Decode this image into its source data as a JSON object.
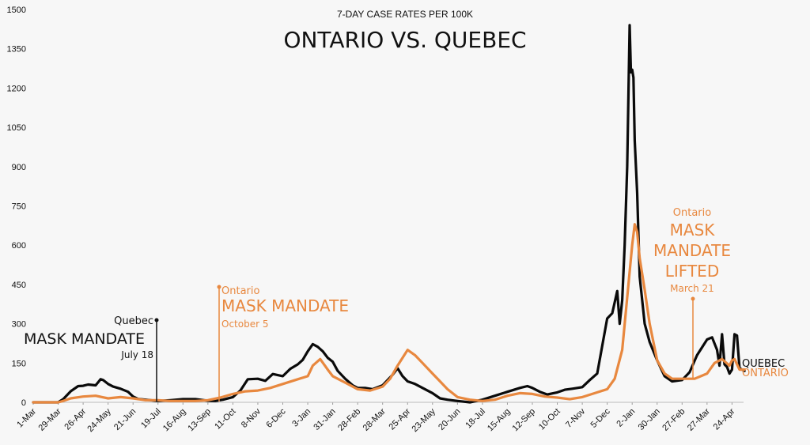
{
  "colors": {
    "quebec": "#0a0a0a",
    "ontario": "#e8883f",
    "background": "#f7f7f7"
  },
  "chart_data": {
    "type": "line",
    "title": "ONTARIO VS. QUEBEC",
    "subtitle": "7-DAY CASE RATES PER 100K",
    "xlabel": "",
    "ylabel": "",
    "ylim": [
      0,
      1500
    ],
    "yticks": [
      0,
      150,
      300,
      450,
      600,
      750,
      900,
      1050,
      1200,
      1350,
      1500
    ],
    "grid": false,
    "xticks": [
      "1-Mar",
      "29-Mar",
      "26-Apr",
      "24-May",
      "21-Jun",
      "19-Jul",
      "16-Aug",
      "13-Sep",
      "11-Oct",
      "8-Nov",
      "6-Dec",
      "3-Jan",
      "31-Jan",
      "28-Feb",
      "28-Mar",
      "25-Apr",
      "23-May",
      "20-Jun",
      "18-Jul",
      "15-Aug",
      "12-Sep",
      "10-Oct",
      "7-Nov",
      "5-Dec",
      "2-Jan",
      "30-Jan",
      "27-Feb",
      "27-Mar",
      "24-Apr"
    ],
    "series": [
      {
        "name": "QUEBEC",
        "color": "#0a0a0a",
        "x": [
          0,
          0.5,
          1,
          1.2,
          1.5,
          1.8,
          2,
          2.2,
          2.5,
          2.7,
          2.8,
          3,
          3.2,
          3.5,
          3.8,
          4,
          4.2,
          4.5,
          5,
          5.5,
          6,
          6.5,
          7,
          7.3,
          7.6,
          8,
          8.3,
          8.6,
          9,
          9.3,
          9.6,
          10,
          10.3,
          10.6,
          10.8,
          11,
          11.2,
          11.4,
          11.6,
          11.8,
          12,
          12.2,
          12.5,
          12.8,
          13,
          13.3,
          13.6,
          14,
          14.2,
          14.4,
          14.6,
          14.8,
          15,
          15.3,
          15.6,
          16,
          16.3,
          16.6,
          17,
          17.5,
          18,
          18.5,
          19,
          19.5,
          19.8,
          20,
          20.3,
          20.6,
          21,
          21.3,
          21.6,
          22,
          22.3,
          22.6,
          23,
          23.2,
          23.4,
          23.5,
          23.6,
          23.7,
          23.8,
          23.9,
          23.95,
          24,
          24.05,
          24.1,
          24.2,
          24.3,
          24.5,
          24.7,
          25,
          25.3,
          25.6,
          26,
          26.3,
          26.6,
          27,
          27.2,
          27.4,
          27.5,
          27.6,
          27.7,
          27.8,
          27.9,
          28,
          28.1,
          28.2,
          28.3,
          28.5
        ],
        "y": [
          0,
          0,
          0,
          12,
          42,
          62,
          63,
          68,
          65,
          88,
          85,
          70,
          60,
          52,
          40,
          22,
          13,
          10,
          5,
          8,
          12,
          12,
          6,
          5,
          10,
          20,
          45,
          88,
          90,
          82,
          108,
          100,
          128,
          145,
          162,
          195,
          222,
          212,
          195,
          170,
          155,
          120,
          90,
          65,
          55,
          55,
          50,
          65,
          85,
          105,
          130,
          100,
          80,
          70,
          55,
          35,
          15,
          10,
          5,
          0,
          10,
          25,
          40,
          55,
          62,
          55,
          40,
          30,
          38,
          48,
          52,
          58,
          85,
          110,
          320,
          340,
          425,
          300,
          390,
          600,
          900,
          1440,
          1260,
          1270,
          1240,
          1000,
          800,
          480,
          300,
          230,
          160,
          100,
          80,
          85,
          115,
          180,
          240,
          248,
          200,
          140,
          260,
          145,
          135,
          110,
          125,
          260,
          255,
          130,
          120
        ]
      },
      {
        "name": "ONTARIO",
        "color": "#e8883f",
        "x": [
          0,
          0.5,
          1,
          1.2,
          1.5,
          2,
          2.5,
          3,
          3.5,
          4,
          4.5,
          5,
          5.5,
          6,
          6.5,
          7,
          7.5,
          8,
          8.5,
          9,
          9.5,
          10,
          10.5,
          11,
          11.2,
          11.5,
          11.8,
          12,
          12.5,
          13,
          13.5,
          14,
          14.3,
          14.6,
          15,
          15.3,
          15.6,
          16,
          16.3,
          16.6,
          17,
          17.5,
          18,
          18.5,
          19,
          19.5,
          20,
          20.5,
          21,
          21.5,
          22,
          22.5,
          23,
          23.3,
          23.6,
          23.8,
          24,
          24.1,
          24.2,
          24.3,
          24.5,
          24.7,
          25,
          25.3,
          25.6,
          26,
          26.5,
          27,
          27.3,
          27.6,
          27.9,
          28,
          28.1,
          28.3,
          28.5
        ],
        "y": [
          0,
          0,
          0,
          5,
          15,
          22,
          25,
          15,
          20,
          15,
          8,
          8,
          5,
          5,
          5,
          8,
          18,
          32,
          42,
          45,
          55,
          70,
          85,
          100,
          140,
          165,
          125,
          100,
          75,
          50,
          45,
          60,
          90,
          140,
          200,
          180,
          150,
          110,
          80,
          50,
          20,
          10,
          5,
          10,
          25,
          35,
          32,
          22,
          18,
          12,
          20,
          35,
          50,
          90,
          200,
          400,
          600,
          680,
          650,
          550,
          430,
          300,
          160,
          110,
          90,
          90,
          90,
          110,
          150,
          165,
          140,
          160,
          165,
          125,
          125
        ]
      }
    ]
  },
  "annotations": {
    "quebec_label": "Quebec",
    "quebec_mandate": "MASK MANDATE",
    "quebec_date": "July 18",
    "ontario_label": "Ontario",
    "ontario_mandate": "MASK MANDATE",
    "ontario_date": "October 5",
    "ontario_lift_label": "Ontario",
    "ontario_lift_line1": "MASK",
    "ontario_lift_line2": "MANDATE",
    "ontario_lift_line3": "LIFTED",
    "ontario_lift_date": "March 21",
    "end_label_quebec": "QUEBEC",
    "end_label_ontario": "ONTARIO"
  }
}
